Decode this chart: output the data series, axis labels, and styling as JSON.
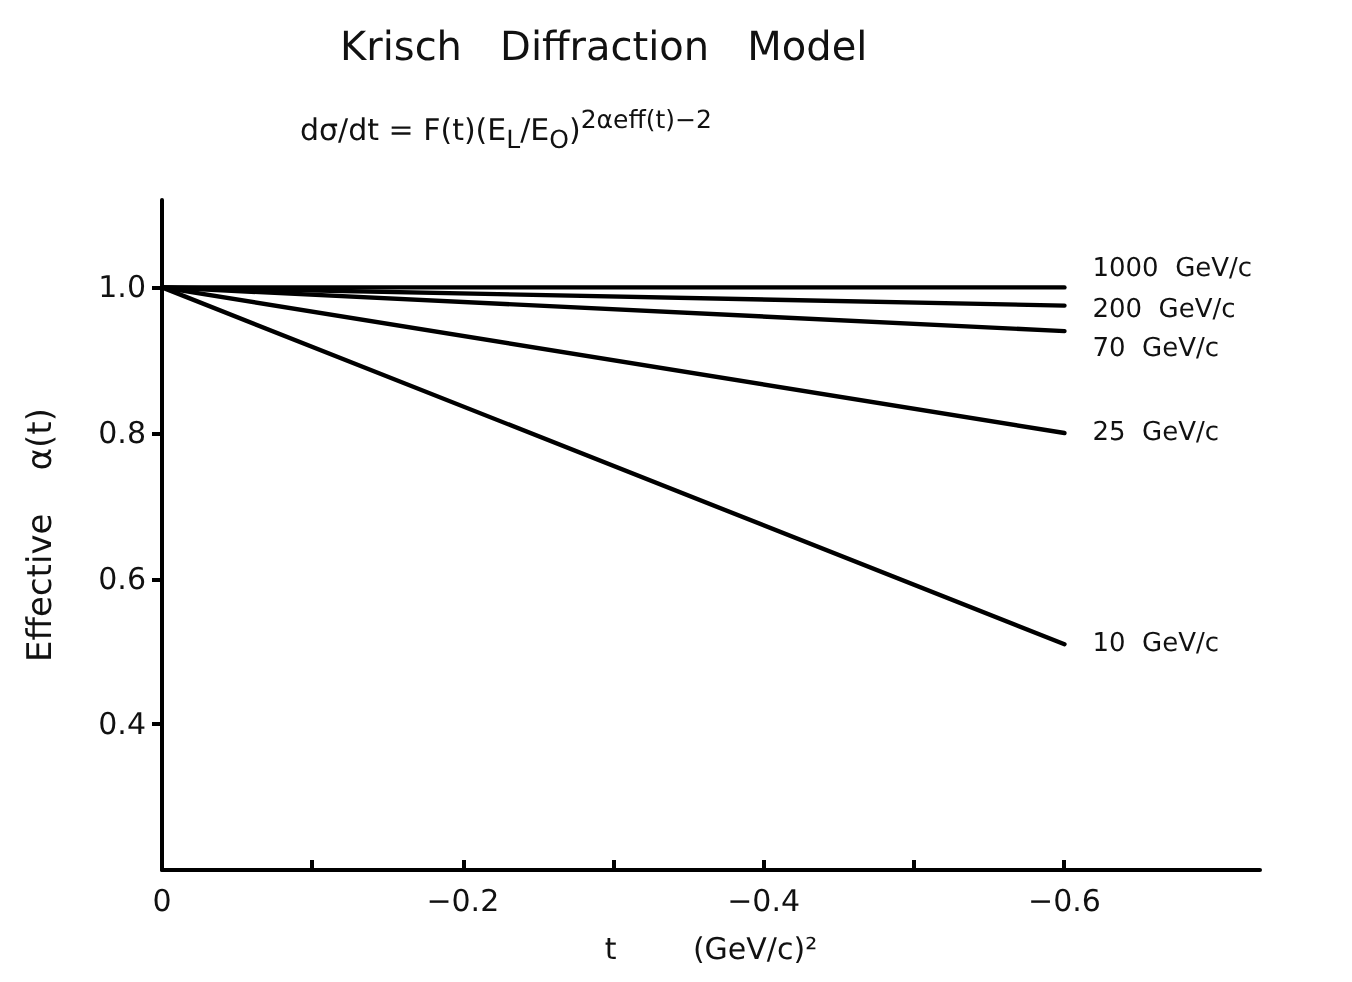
{
  "chart_data": {
    "type": "line",
    "title": "Krisch   Diffraction   Model",
    "subtitle": "dσ/dt = F(t)(E$_{L}$/E$_{O}$)$^{2αeff(t)−2}$",
    "xlabel": "t        (GeV/c)²",
    "ylabel": "Effective    α(t)",
    "x": [
      0,
      -0.6
    ],
    "series": [
      {
        "name": "1000  GeV/c",
        "color": "#000000",
        "values": [
          1.0,
          1.0
        ]
      },
      {
        "name": "200  GeV/c",
        "color": "#000000",
        "values": [
          1.0,
          0.975
        ]
      },
      {
        "name": "70  GeV/c",
        "color": "#000000",
        "values": [
          1.0,
          0.94
        ]
      },
      {
        "name": "25  GeV/c",
        "color": "#000000",
        "values": [
          1.0,
          0.8
        ]
      },
      {
        "name": "10  GeV/c",
        "color": "#000000",
        "values": [
          1.0,
          0.51
        ]
      }
    ],
    "xlim": [
      0,
      -0.73
    ],
    "xticks": [
      0,
      {
        "value": -0.1,
        "label": null
      },
      {
        "value": -0.2,
        "label": "−0.2"
      },
      {
        "value": -0.3,
        "label": null
      },
      {
        "value": -0.4,
        "label": "−0.4"
      },
      {
        "value": -0.5,
        "label": null
      },
      {
        "value": -0.6,
        "label": "−0.6"
      }
    ],
    "ylim": [
      0.2,
      1.12
    ],
    "yticks": [
      {
        "value": 0.4,
        "label": "0.4"
      },
      {
        "value": 0.6,
        "label": "0.6"
      },
      {
        "value": 0.8,
        "label": "0.8"
      },
      {
        "value": 1.0,
        "label": "1.0"
      }
    ],
    "grid": false,
    "legend": false,
    "marker": "none",
    "line_style": "solid"
  }
}
